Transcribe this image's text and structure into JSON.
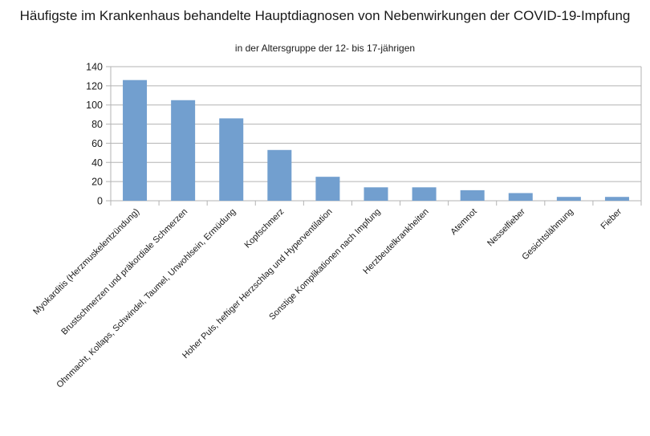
{
  "chart_data": {
    "type": "bar",
    "title": "Häufigste im Krankenhaus behandelte Hauptdiagnosen von Nebenwirkungen der COVID-19-Impfung",
    "subtitle": "in der Altersgruppe der 12- bis 17-jährigen",
    "categories": [
      "Myokarditis (Herzmuskelentzündung)",
      "Brustschmerzen und präkordiale Schmerzen",
      "Ohnmacht, Kollaps, Schwindel, Taumel, Unwohlsein, Ermüdung",
      "Kopfschmerz",
      "Hoher Puls, heftiger Herzschlag und Hyperventilation",
      "Sonstige Komplikationen nach Impfung",
      "Herzbeutelkrankheiten",
      "Atemnot",
      "Nesselfieber",
      "Gesichtslähmung",
      "Fieber"
    ],
    "values": [
      126,
      105,
      86,
      53,
      25,
      14,
      14,
      11,
      8,
      4,
      4
    ],
    "ylim": [
      0,
      140
    ],
    "yticks": [
      0,
      20,
      40,
      60,
      80,
      100,
      120,
      140
    ],
    "grid": true,
    "bar_color": "#729fcf"
  }
}
